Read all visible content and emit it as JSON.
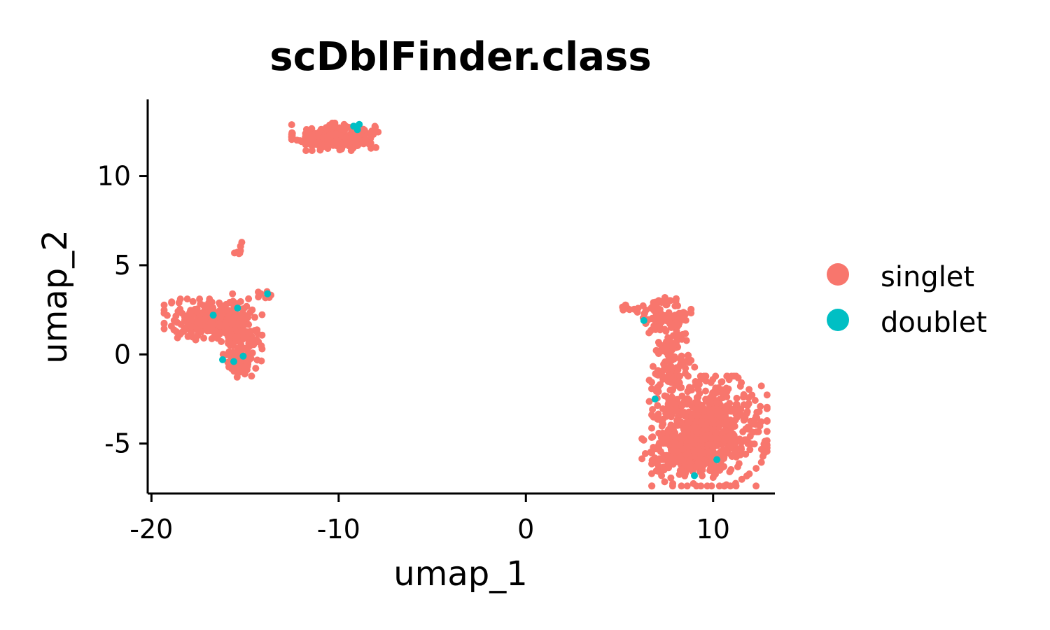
{
  "chart_data": {
    "type": "scatter",
    "title": "scDblFinder.class",
    "xlabel": "umap_1",
    "ylabel": "umap_2",
    "xlim": [
      -20.2,
      13.3
    ],
    "ylim": [
      -7.8,
      14.3
    ],
    "xticks": [
      -20,
      -10,
      0,
      10
    ],
    "yticks": [
      -5,
      0,
      5,
      10
    ],
    "xtick_labels": [
      "-20",
      "-10",
      "0",
      "10"
    ],
    "ytick_labels": [
      "-5",
      "0",
      "5",
      "10"
    ],
    "grid": false,
    "legend_position": "right",
    "series": [
      {
        "name": "singlet",
        "color": "#F8766D",
        "clusters": [
          {
            "center": [
              -10.2,
              12.2
            ],
            "spread": [
              1.05,
              0.35
            ],
            "count": 260
          },
          {
            "center": [
              -16.9,
              1.9
            ],
            "spread": [
              1.1,
              0.55
            ],
            "count": 240
          },
          {
            "center": [
              -15.3,
              1.2
            ],
            "spread": [
              0.55,
              1.0
            ],
            "count": 140
          },
          {
            "center": [
              -15.2,
              -0.8
            ],
            "spread": [
              0.25,
              0.35
            ],
            "count": 30
          },
          {
            "center": [
              -15.35,
              5.9
            ],
            "spread": [
              0.15,
              0.25
            ],
            "count": 8
          },
          {
            "center": [
              -13.8,
              3.4
            ],
            "spread": [
              0.3,
              0.2
            ],
            "count": 8
          },
          {
            "center": [
              7.5,
              2.2
            ],
            "spread": [
              0.6,
              0.45
            ],
            "count": 90
          },
          {
            "center": [
              5.6,
              2.6
            ],
            "spread": [
              0.3,
              0.12
            ],
            "count": 10
          },
          {
            "center": [
              7.8,
              -0.5
            ],
            "spread": [
              0.55,
              1.6
            ],
            "count": 150
          },
          {
            "center": [
              9.8,
              -4.3
            ],
            "spread": [
              1.4,
              1.4
            ],
            "count": 650
          },
          {
            "center": [
              8.4,
              -5.6
            ],
            "spread": [
              1.0,
              0.55
            ],
            "count": 120
          }
        ]
      },
      {
        "name": "doublet",
        "color": "#00BFC4",
        "points": [
          [
            -9.2,
            12.8
          ],
          [
            -9.0,
            12.6
          ],
          [
            -8.9,
            12.9
          ],
          [
            -16.7,
            2.2
          ],
          [
            -15.4,
            2.6
          ],
          [
            -16.2,
            -0.3
          ],
          [
            -15.6,
            -0.4
          ],
          [
            -15.1,
            -0.1
          ],
          [
            -13.8,
            3.4
          ],
          [
            6.3,
            1.9
          ],
          [
            6.9,
            -2.5
          ],
          [
            9.0,
            -6.8
          ],
          [
            10.2,
            -5.9
          ]
        ]
      }
    ],
    "legend": [
      {
        "label": "singlet",
        "color": "#F8766D"
      },
      {
        "label": "doublet",
        "color": "#00BFC4"
      }
    ]
  }
}
